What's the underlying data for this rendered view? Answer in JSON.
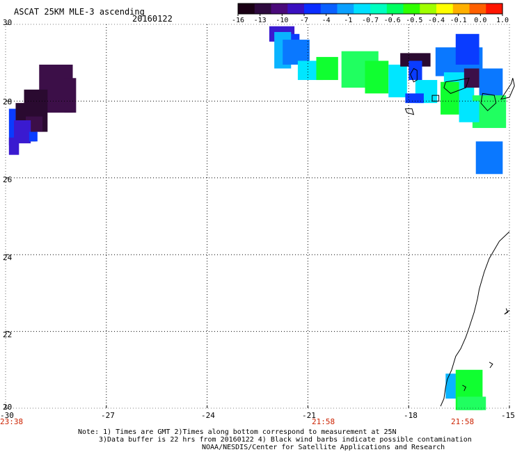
{
  "header": {
    "title": "ASCAT 25KM MLE-3 ascending",
    "date": "20160122"
  },
  "colorbar": {
    "labels": [
      "-16",
      "-13",
      "-10",
      "-7",
      "-4",
      "-1",
      "-0.7",
      "-0.6",
      "-0.5",
      "-0.4",
      "-0.1",
      "0.0",
      "1.0"
    ],
    "colors": [
      "#1a0014",
      "#2e0a3e",
      "#4a0a7a",
      "#3a10c0",
      "#0a2cff",
      "#0a60ff",
      "#0aa0ff",
      "#00e0ff",
      "#00ffc0",
      "#00ff60",
      "#30ff00",
      "#a0ff00",
      "#ffff00",
      "#ffb000",
      "#ff6000",
      "#ff1500"
    ]
  },
  "map": {
    "lat_labels": [
      "30",
      "28",
      "26",
      "24",
      "22",
      "20"
    ],
    "lon_labels": [
      "-30",
      "-27",
      "-24",
      "-21",
      "-18",
      "-15"
    ],
    "time_labels": [
      "23:38",
      "21:58",
      "21:58"
    ],
    "colors": {
      "dark_purple": "#2a0a30",
      "purple": "#3c0f48",
      "blue_violet": "#3a1ad0",
      "blue": "#0a3cff",
      "azure": "#0a78ff",
      "cyan_blue": "#0ab4ff",
      "cyan": "#00e6ff",
      "green": "#10ff30",
      "lime": "#20ff60",
      "coast": "#000000",
      "grid": "#000000",
      "time_label": "#cc2200"
    }
  },
  "notes": {
    "line1": "Note: 1) Times are GMT 2)Times along bottom correspond to measurement at 25N",
    "line2": "3)Data buffer is 22 hrs from 20160122 4) Black wind barbs indicate possible contamination",
    "line3": "NOAA/NESDIS/Center for Satellite Applications and Research"
  }
}
